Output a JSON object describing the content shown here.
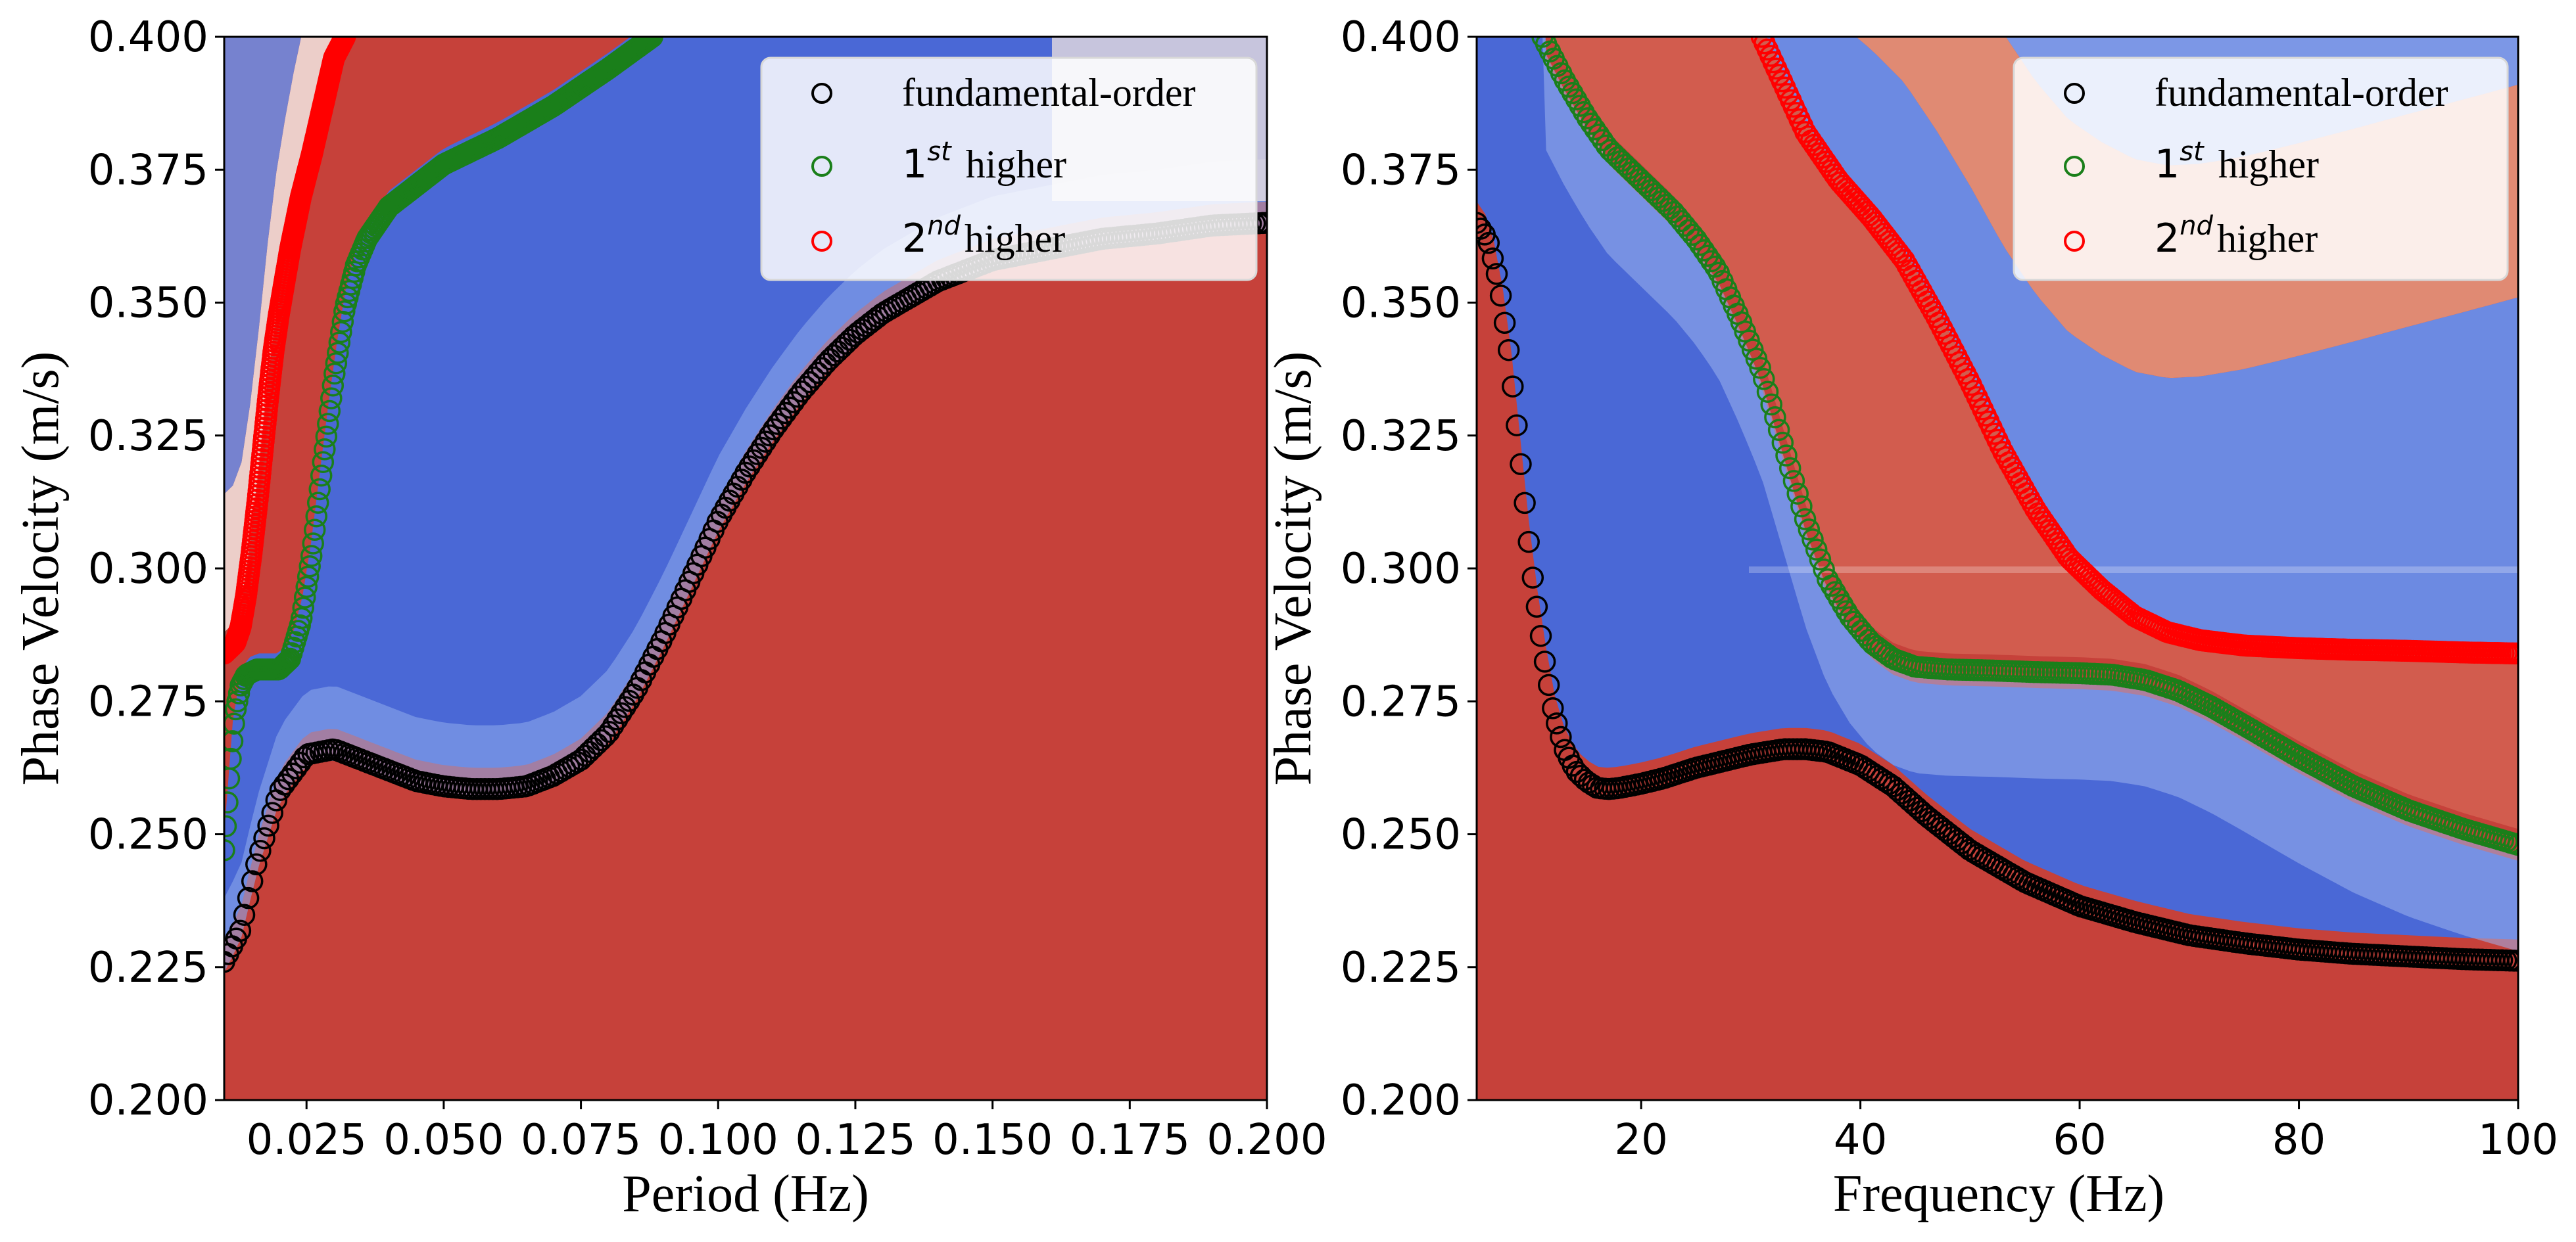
{
  "colors": {
    "blue": "#4a68d6",
    "red": "#c6413a",
    "white": "#f1eeec",
    "fundamental": "#000000",
    "first_higher": "#1a7f1a",
    "second_higher": "#ff0000"
  },
  "chart_data": [
    {
      "type": "scatter",
      "background": "heatmap",
      "xlabel": "Period (Hz)",
      "ylabel": "Phase Velocity (m/s)",
      "xlim": [
        0.01,
        0.2
      ],
      "ylim": [
        0.2,
        0.4
      ],
      "xticks": [
        0.025,
        0.05,
        0.075,
        0.1,
        0.125,
        0.15,
        0.175,
        0.2
      ],
      "xtick_labels": [
        "0.025",
        "0.050",
        "0.075",
        "0.100",
        "0.125",
        "0.150",
        "0.175",
        "0.200"
      ],
      "yticks": [
        0.2,
        0.225,
        0.25,
        0.275,
        0.3,
        0.325,
        0.35,
        0.375,
        0.4
      ],
      "ytick_labels": [
        "0.200",
        "0.225",
        "0.250",
        "0.275",
        "0.300",
        "0.325",
        "0.350",
        "0.375",
        "0.400"
      ],
      "legend_position": "top-right",
      "legend": [
        {
          "text": "fundamental-order",
          "base": "",
          "sup": ""
        },
        {
          "text": "higher",
          "base": "1",
          "sup": "st"
        },
        {
          "text": "higher",
          "base": "2",
          "sup": "nd"
        }
      ],
      "series": [
        {
          "color_key": "fundamental",
          "x": [
            0.01,
            0.013,
            0.016,
            0.02,
            0.025,
            0.03,
            0.035,
            0.04,
            0.045,
            0.05,
            0.055,
            0.06,
            0.065,
            0.07,
            0.075,
            0.08,
            0.085,
            0.09,
            0.095,
            0.1,
            0.105,
            0.11,
            0.115,
            0.12,
            0.125,
            0.13,
            0.135,
            0.14,
            0.145,
            0.15,
            0.16,
            0.17,
            0.18,
            0.19,
            0.2
          ],
          "y": [
            0.226,
            0.232,
            0.245,
            0.258,
            0.265,
            0.266,
            0.264,
            0.262,
            0.26,
            0.259,
            0.2585,
            0.2585,
            0.259,
            0.261,
            0.264,
            0.269,
            0.277,
            0.287,
            0.298,
            0.309,
            0.318,
            0.326,
            0.333,
            0.339,
            0.344,
            0.348,
            0.351,
            0.354,
            0.356,
            0.358,
            0.36,
            0.362,
            0.363,
            0.3645,
            0.365
          ]
        },
        {
          "color_key": "first_higher",
          "x": [
            0.01,
            0.011,
            0.012,
            0.013,
            0.014,
            0.016,
            0.018,
            0.02,
            0.022,
            0.024,
            0.026,
            0.028,
            0.03,
            0.032,
            0.034,
            0.036,
            0.04,
            0.045,
            0.05,
            0.06,
            0.07,
            0.08,
            0.088
          ],
          "y": [
            0.247,
            0.262,
            0.273,
            0.278,
            0.28,
            0.281,
            0.281,
            0.281,
            0.283,
            0.29,
            0.303,
            0.32,
            0.336,
            0.349,
            0.357,
            0.362,
            0.368,
            0.372,
            0.376,
            0.381,
            0.387,
            0.394,
            0.4
          ]
        },
        {
          "color_key": "second_higher",
          "x": [
            0.01,
            0.011,
            0.012,
            0.013,
            0.014,
            0.015,
            0.016,
            0.017,
            0.018,
            0.019,
            0.02,
            0.022,
            0.024,
            0.026,
            0.028,
            0.03,
            0.032
          ],
          "y": [
            0.284,
            0.285,
            0.286,
            0.289,
            0.295,
            0.303,
            0.312,
            0.322,
            0.332,
            0.341,
            0.348,
            0.36,
            0.37,
            0.378,
            0.387,
            0.396,
            0.4
          ]
        }
      ]
    },
    {
      "type": "scatter",
      "background": "heatmap",
      "xlabel": "Frequency (Hz)",
      "ylabel": "Phase Velocity (m/s)",
      "xlim": [
        5,
        100
      ],
      "ylim": [
        0.2,
        0.4
      ],
      "xticks": [
        20,
        40,
        60,
        80,
        100
      ],
      "xtick_labels": [
        "20",
        "40",
        "60",
        "80",
        "100"
      ],
      "yticks": [
        0.2,
        0.225,
        0.25,
        0.275,
        0.3,
        0.325,
        0.35,
        0.375,
        0.4
      ],
      "ytick_labels": [
        "0.200",
        "0.225",
        "0.250",
        "0.275",
        "0.300",
        "0.325",
        "0.350",
        "0.375",
        "0.400"
      ],
      "legend_position": "top-right",
      "legend": [
        {
          "text": "fundamental-order",
          "base": "",
          "sup": ""
        },
        {
          "text": "higher",
          "base": "1",
          "sup": "st"
        },
        {
          "text": "higher",
          "base": "2",
          "sup": "nd"
        }
      ],
      "series": [
        {
          "color_key": "fundamental",
          "x": [
            5,
            6,
            7,
            8,
            9,
            10,
            11,
            12,
            13,
            14,
            15,
            16,
            17,
            18,
            20,
            22,
            25,
            28,
            30,
            33,
            35,
            37,
            40,
            43,
            46,
            50,
            55,
            60,
            65,
            70,
            75,
            80,
            85,
            90,
            95,
            100
          ],
          "y": [
            0.365,
            0.362,
            0.354,
            0.34,
            0.32,
            0.3,
            0.285,
            0.273,
            0.266,
            0.262,
            0.26,
            0.2587,
            0.2585,
            0.2587,
            0.2595,
            0.2605,
            0.2625,
            0.264,
            0.265,
            0.266,
            0.266,
            0.2655,
            0.263,
            0.259,
            0.2535,
            0.247,
            0.241,
            0.2365,
            0.2335,
            0.231,
            0.2295,
            0.2283,
            0.2275,
            0.227,
            0.2265,
            0.2262
          ]
        },
        {
          "color_key": "first_higher",
          "x": [
            11,
            13,
            15,
            17,
            20,
            23,
            25,
            27,
            29,
            31,
            33,
            35,
            37,
            39,
            41,
            43,
            45,
            48,
            52,
            56,
            60,
            63,
            66,
            69,
            72,
            75,
            80,
            85,
            90,
            95,
            100
          ],
          "y": [
            0.4,
            0.392,
            0.385,
            0.379,
            0.373,
            0.367,
            0.362,
            0.356,
            0.347,
            0.337,
            0.323,
            0.309,
            0.298,
            0.291,
            0.286,
            0.283,
            0.2815,
            0.281,
            0.2808,
            0.2805,
            0.2803,
            0.28,
            0.279,
            0.277,
            0.274,
            0.2705,
            0.2645,
            0.259,
            0.2545,
            0.251,
            0.248
          ]
        },
        {
          "color_key": "second_higher",
          "x": [
            31,
            33,
            35,
            38,
            41,
            44,
            47,
            50,
            53,
            56,
            59,
            62,
            65,
            68,
            71,
            75,
            80,
            85,
            90,
            95,
            100
          ],
          "y": [
            0.4,
            0.391,
            0.382,
            0.373,
            0.366,
            0.358,
            0.347,
            0.335,
            0.322,
            0.311,
            0.302,
            0.296,
            0.291,
            0.288,
            0.2865,
            0.2855,
            0.285,
            0.2847,
            0.2845,
            0.2842,
            0.284
          ]
        }
      ]
    }
  ]
}
